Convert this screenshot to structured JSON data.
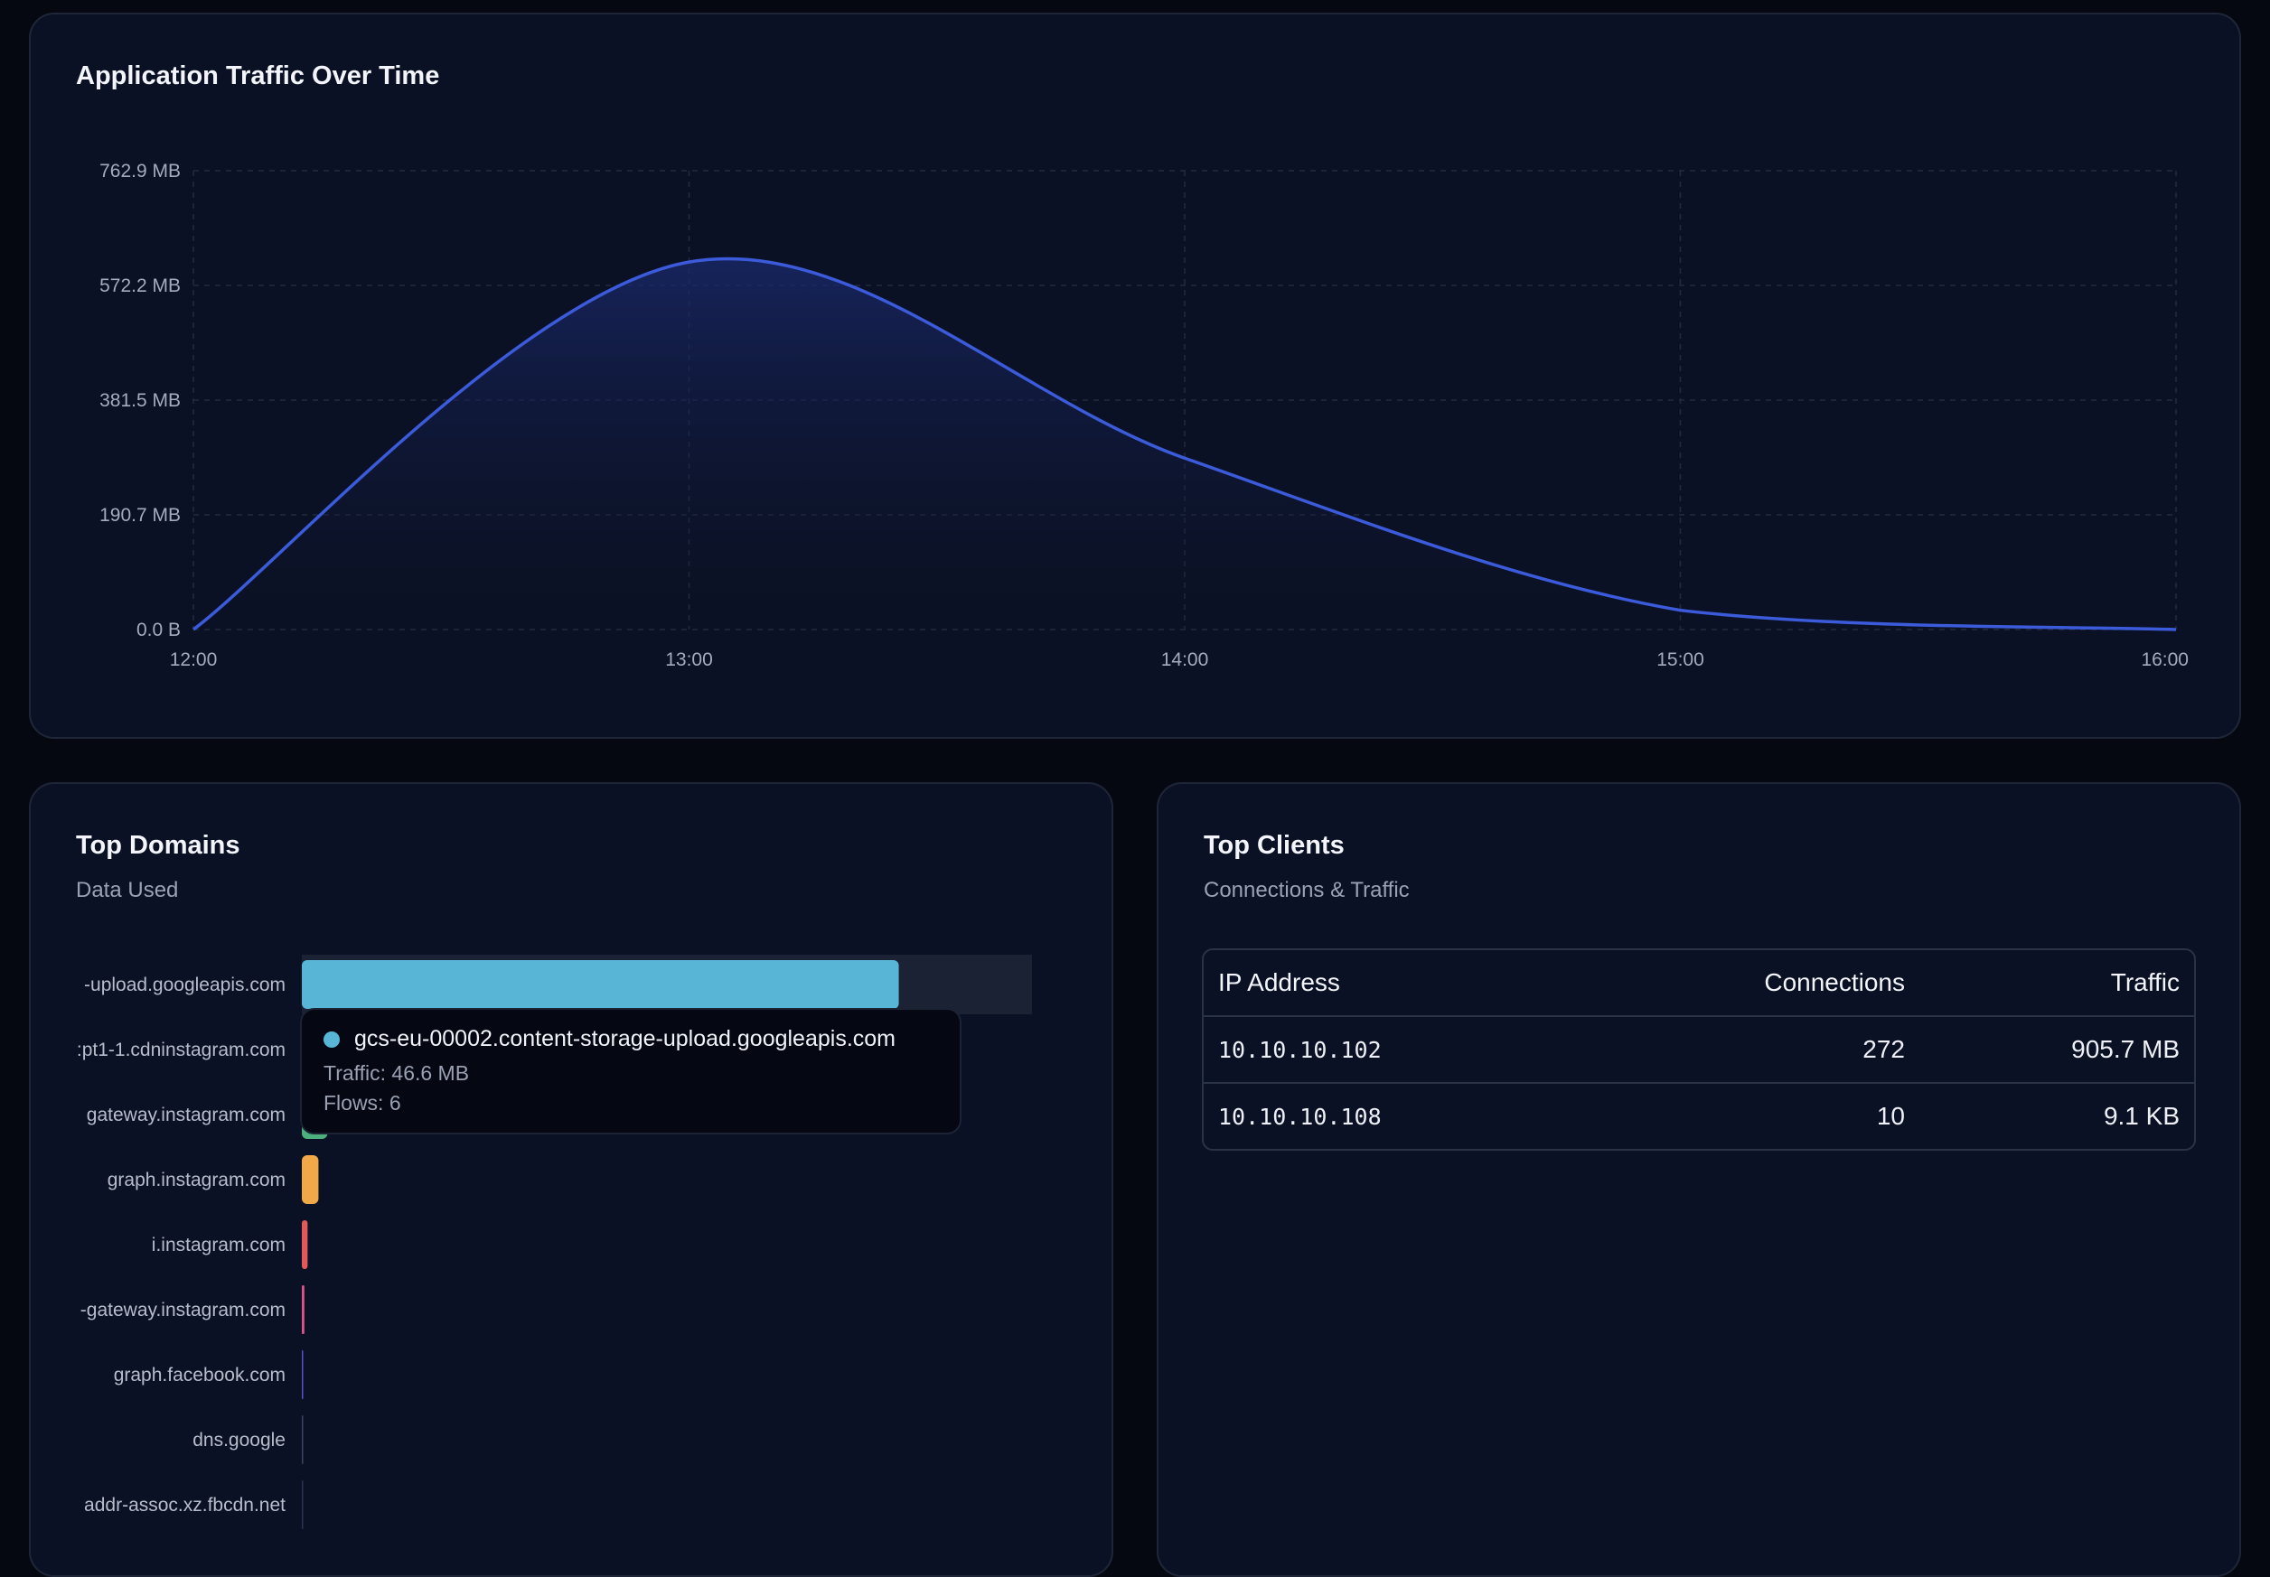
{
  "traffic_panel": {
    "title": "Application Traffic Over Time"
  },
  "domains_panel": {
    "title": "Top Domains",
    "subtitle": "Data Used"
  },
  "clients_panel": {
    "title": "Top Clients",
    "subtitle": "Connections & Traffic",
    "columns": [
      "IP Address",
      "Connections",
      "Traffic"
    ],
    "rows": [
      {
        "ip": "10.10.10.102",
        "connections": "272",
        "traffic": "905.7 MB"
      },
      {
        "ip": "10.10.10.108",
        "connections": "10",
        "traffic": "9.1 KB"
      }
    ]
  },
  "tooltip": {
    "domain": "gcs-eu-00002.content-storage-upload.googleapis.com",
    "traffic": "Traffic: 46.6 MB",
    "flows": "Flows: 6",
    "color": "#58b5d6"
  },
  "chart_data": [
    {
      "type": "area",
      "title": "Application Traffic Over Time",
      "xlabel": "",
      "ylabel": "",
      "x_ticks": [
        "12:00",
        "13:00",
        "14:00",
        "15:00",
        "16:00"
      ],
      "y_ticks": [
        "0.0 B",
        "190.7 MB",
        "381.5 MB",
        "572.2 MB",
        "762.9 MB"
      ],
      "ylim_mb": [
        0,
        762.9
      ],
      "grid": true,
      "series": [
        {
          "color": "#3b5bdb",
          "x": [
            "12:00",
            "13:00",
            "14:00",
            "15:00",
            "16:00"
          ],
          "y_mb": [
            0,
            611,
            285,
            32,
            0
          ]
        }
      ]
    },
    {
      "type": "bar",
      "orientation": "horizontal",
      "title": "Top Domains",
      "subtitle": "Data Used",
      "categories": [
        "-upload.googleapis.com",
        ":pt1-1.cdninstagram.com",
        "gateway.instagram.com",
        "graph.instagram.com",
        "i.instagram.com",
        "-gateway.instagram.com",
        "graph.facebook.com",
        "dns.google",
        "addr-assoc.xz.fbcdn.net"
      ],
      "values_mb": [
        46.6,
        3.5,
        2.0,
        1.3,
        0.45,
        0.2,
        0.1,
        0.05,
        0.02
      ],
      "max_mb": 57,
      "colors": [
        "#58b5d6",
        "#58b5d6",
        "#4caf7d",
        "#f0a848",
        "#e15a5a",
        "#d8548a",
        "#5a4fd0",
        "#3a4560",
        "#2a3350"
      ],
      "highlighted_index": 0
    }
  ]
}
